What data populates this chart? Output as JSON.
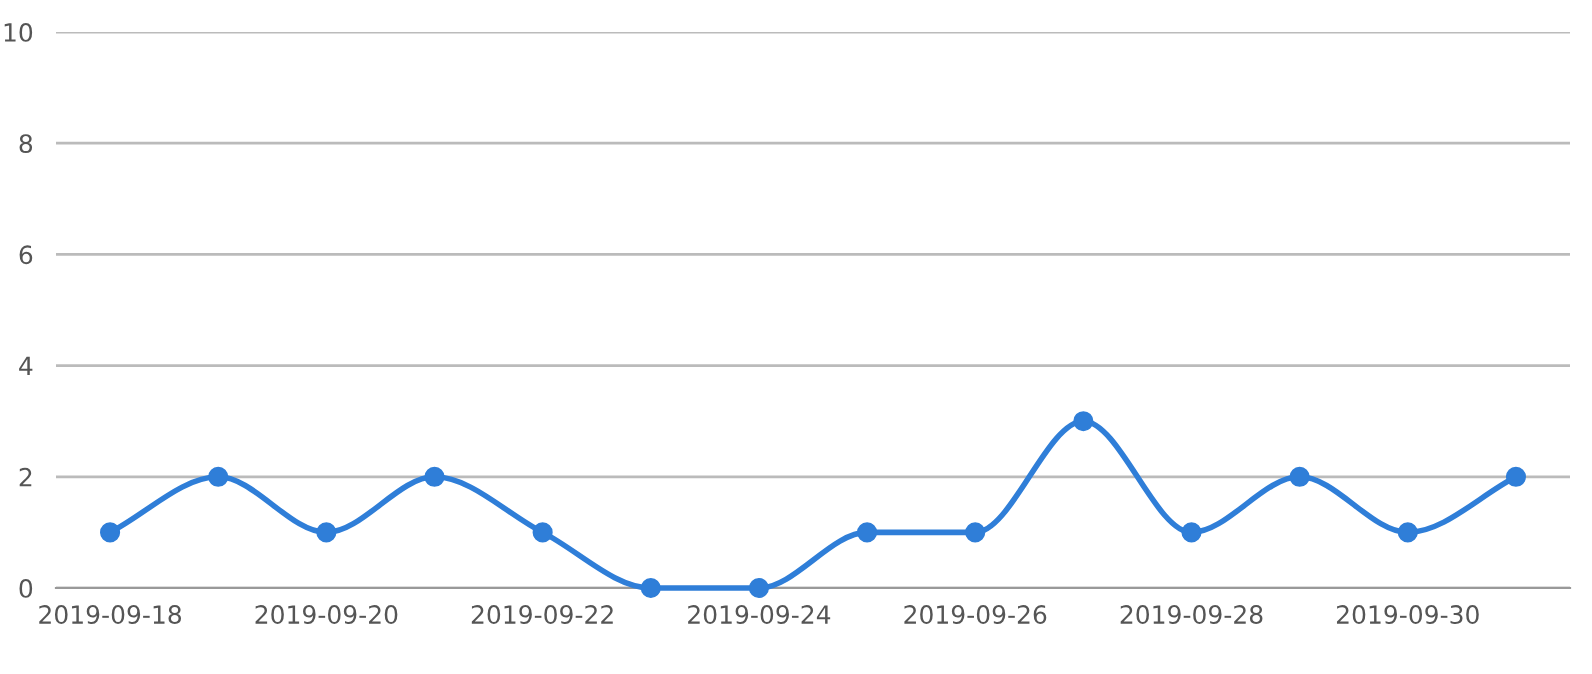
{
  "chart_data": {
    "type": "line",
    "categories": [
      "2019-09-18",
      null,
      "2019-09-20",
      null,
      "2019-09-22",
      null,
      "2019-09-24",
      null,
      "2019-09-26",
      null,
      "2019-09-28",
      null,
      "2019-09-30",
      null
    ],
    "series": [
      {
        "color": "#2f7ed8",
        "values": [
          1,
          2,
          1,
          2,
          1,
          0,
          0,
          1,
          1,
          3,
          1,
          2,
          1,
          2
        ]
      }
    ],
    "ylim": [
      0,
      10
    ],
    "yticks": [
      0,
      2,
      4,
      6,
      8,
      10
    ],
    "grid": "y",
    "marker": "circle",
    "line_style": "solid"
  }
}
